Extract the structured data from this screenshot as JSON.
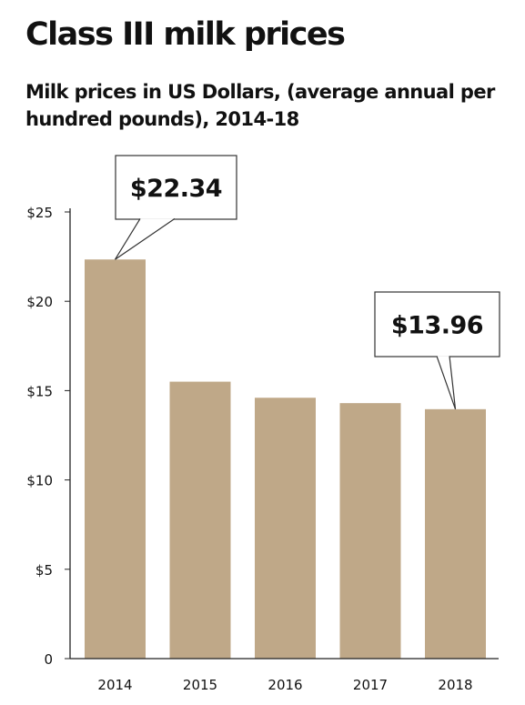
{
  "title": "Class III milk prices",
  "subtitle": "Milk prices in US Dollars, (average annual per hundred pounds), 2014-18",
  "colors": {
    "bar": "#bfa888",
    "axis": "#222222",
    "text": "#111111"
  },
  "chart_data": {
    "type": "bar",
    "title": "Class III milk prices",
    "subtitle": "Milk prices in US Dollars, (average annual per hundred pounds), 2014-18",
    "categories": [
      "2014",
      "2015",
      "2016",
      "2017",
      "2018"
    ],
    "values": [
      22.34,
      15.5,
      14.6,
      14.3,
      13.96
    ],
    "ylim": [
      0,
      25
    ],
    "yticks": [
      0,
      5,
      10,
      15,
      20,
      25
    ],
    "ytick_labels": [
      "0",
      "$5",
      "$10",
      "$15",
      "$20",
      "$25"
    ],
    "xlabel": "",
    "ylabel": "",
    "grid": false,
    "legend": "none",
    "annotations": [
      {
        "category": "2014",
        "text": "$22.34"
      },
      {
        "category": "2018",
        "text": "$13.96"
      }
    ]
  }
}
